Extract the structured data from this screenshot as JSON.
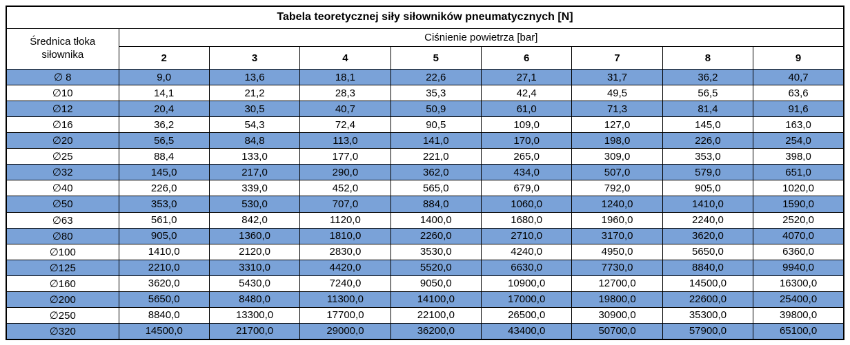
{
  "chart_data": {
    "type": "table",
    "title": "Tabela teoretycznej siły siłowników pneumatycznych [N]",
    "row_header_line1": "Średnica tłoka",
    "row_header_line2": "siłownika",
    "col_group_header": "Ciśnienie powietrza [bar]",
    "pressures": [
      "2",
      "3",
      "4",
      "5",
      "6",
      "7",
      "8",
      "9"
    ],
    "rows": [
      {
        "diameter": "∅ 8",
        "values": [
          "9,0",
          "13,6",
          "18,1",
          "22,6",
          "27,1",
          "31,7",
          "36,2",
          "40,7"
        ]
      },
      {
        "diameter": "∅10",
        "values": [
          "14,1",
          "21,2",
          "28,3",
          "35,3",
          "42,4",
          "49,5",
          "56,5",
          "63,6"
        ]
      },
      {
        "diameter": "∅12",
        "values": [
          "20,4",
          "30,5",
          "40,7",
          "50,9",
          "61,0",
          "71,3",
          "81,4",
          "91,6"
        ]
      },
      {
        "diameter": "∅16",
        "values": [
          "36,2",
          "54,3",
          "72,4",
          "90,5",
          "109,0",
          "127,0",
          "145,0",
          "163,0"
        ]
      },
      {
        "diameter": "∅20",
        "values": [
          "56,5",
          "84,8",
          "113,0",
          "141,0",
          "170,0",
          "198,0",
          "226,0",
          "254,0"
        ]
      },
      {
        "diameter": "∅25",
        "values": [
          "88,4",
          "133,0",
          "177,0",
          "221,0",
          "265,0",
          "309,0",
          "353,0",
          "398,0"
        ]
      },
      {
        "diameter": "∅32",
        "values": [
          "145,0",
          "217,0",
          "290,0",
          "362,0",
          "434,0",
          "507,0",
          "579,0",
          "651,0"
        ]
      },
      {
        "diameter": "∅40",
        "values": [
          "226,0",
          "339,0",
          "452,0",
          "565,0",
          "679,0",
          "792,0",
          "905,0",
          "1020,0"
        ]
      },
      {
        "diameter": "∅50",
        "values": [
          "353,0",
          "530,0",
          "707,0",
          "884,0",
          "1060,0",
          "1240,0",
          "1410,0",
          "1590,0"
        ]
      },
      {
        "diameter": "∅63",
        "values": [
          "561,0",
          "842,0",
          "1120,0",
          "1400,0",
          "1680,0",
          "1960,0",
          "2240,0",
          "2520,0"
        ]
      },
      {
        "diameter": "∅80",
        "values": [
          "905,0",
          "1360,0",
          "1810,0",
          "2260,0",
          "2710,0",
          "3170,0",
          "3620,0",
          "4070,0"
        ]
      },
      {
        "diameter": "∅100",
        "values": [
          "1410,0",
          "2120,0",
          "2830,0",
          "3530,0",
          "4240,0",
          "4950,0",
          "5650,0",
          "6360,0"
        ]
      },
      {
        "diameter": "∅125",
        "values": [
          "2210,0",
          "3310,0",
          "4420,0",
          "5520,0",
          "6630,0",
          "7730,0",
          "8840,0",
          "9940,0"
        ]
      },
      {
        "diameter": "∅160",
        "values": [
          "3620,0",
          "5430,0",
          "7240,0",
          "9050,0",
          "10900,0",
          "12700,0",
          "14500,0",
          "16300,0"
        ]
      },
      {
        "diameter": "∅200",
        "values": [
          "5650,0",
          "8480,0",
          "11300,0",
          "14100,0",
          "17000,0",
          "19800,0",
          "22600,0",
          "25400,0"
        ]
      },
      {
        "diameter": "∅250",
        "values": [
          "8840,0",
          "13300,0",
          "17700,0",
          "22100,0",
          "26500,0",
          "30900,0",
          "35300,0",
          "39800,0"
        ]
      },
      {
        "diameter": "∅320",
        "values": [
          "14500,0",
          "21700,0",
          "29000,0",
          "36200,0",
          "43400,0",
          "50700,0",
          "57900,0",
          "65100,0"
        ]
      }
    ],
    "colors": {
      "row_highlight": "#7AA2D8",
      "row_alt": "#FFFFFF",
      "border": "#000000",
      "text": "#000000"
    },
    "layout": {
      "highlight_pattern": "odd rows highlighted starting with first data row (∅ 8)"
    }
  }
}
